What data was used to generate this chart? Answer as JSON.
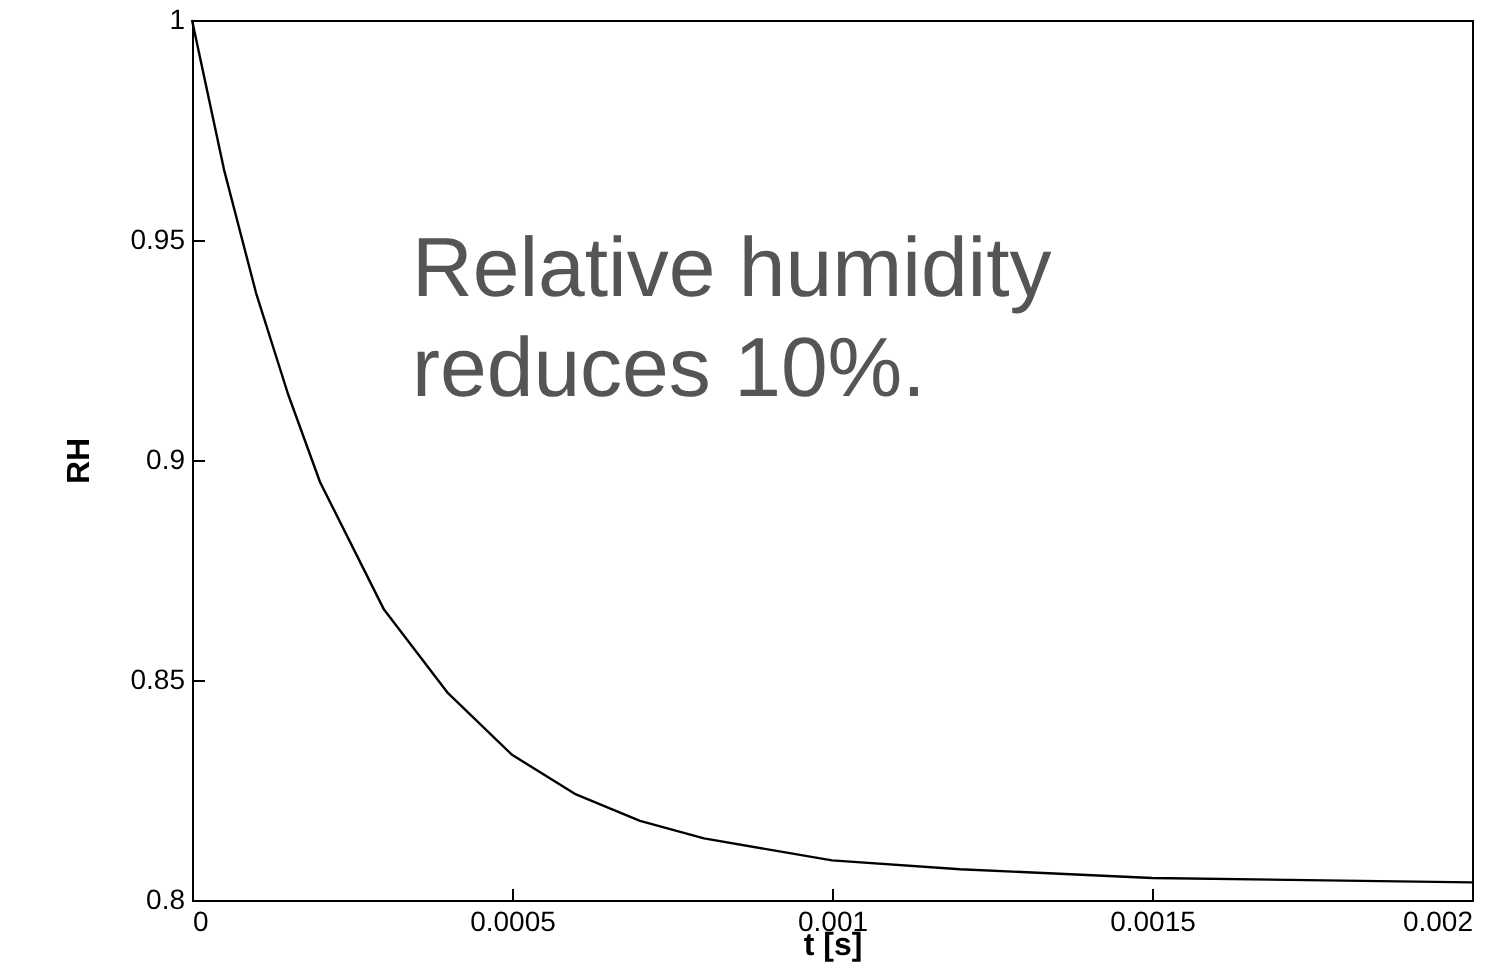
{
  "chart_data": {
    "type": "line",
    "xlabel": "t  [s]",
    "ylabel": "RH",
    "x": [
      0,
      5e-05,
      0.0001,
      0.00015,
      0.0002,
      0.0003,
      0.0004,
      0.0005,
      0.0006,
      0.0007,
      0.0008,
      0.001,
      0.0012,
      0.0015,
      0.002
    ],
    "series": [
      {
        "color": "#000000",
        "values": [
          1.0,
          0.966,
          0.938,
          0.915,
          0.895,
          0.866,
          0.847,
          0.833,
          0.824,
          0.818,
          0.814,
          0.809,
          0.807,
          0.805,
          0.804
        ]
      }
    ],
    "xlim": [
      0,
      0.002
    ],
    "xticks": [
      0,
      0.0005,
      0.001,
      0.0015,
      0.002
    ],
    "ylim": [
      0.8,
      1
    ],
    "yticks": [
      0.8,
      0.85,
      0.9,
      0.95,
      1
    ],
    "annotations": [
      "Relative humidity\nreduces 10%."
    ],
    "grid": false,
    "marker": "none",
    "line_style": "solid"
  }
}
